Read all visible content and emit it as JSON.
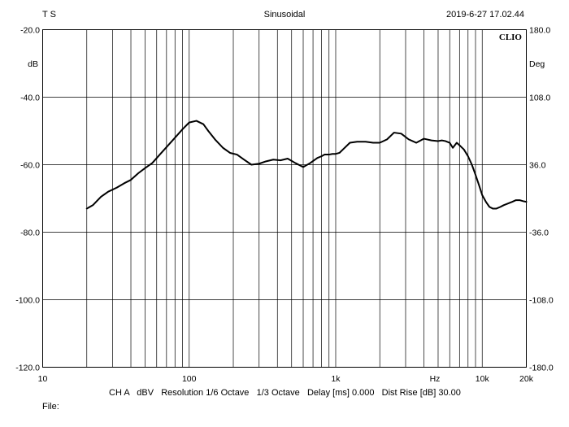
{
  "header": {
    "left": "T S",
    "center": "Sinusoidal",
    "right": "2019-6-27 17.02.44",
    "brand": "CLIO"
  },
  "footer": {
    "settings": "CH A   dBV   Resolution 1/6 Octave   1/3 Octave   Delay [ms] 0.000   Dist Rise [dB] 30.00",
    "file": "File:"
  },
  "chart_data": {
    "type": "line",
    "x_scale": "log",
    "grid": true,
    "xlim": [
      10,
      20000
    ],
    "ylim": [
      -120,
      -20
    ],
    "y2lim": [
      -180,
      180
    ],
    "ylabel": "dB",
    "y2label": "Deg",
    "xunit_label": "Hz",
    "x_ticks": [
      {
        "value": 10,
        "label": "10"
      },
      {
        "value": 100,
        "label": "100"
      },
      {
        "value": 1000,
        "label": "1k"
      },
      {
        "value": 10000,
        "label": "10k"
      },
      {
        "value": 20000,
        "label": "20k"
      }
    ],
    "y_ticks": [
      {
        "value": -20,
        "label": "-20.0"
      },
      {
        "value": -40,
        "label": "-40.0"
      },
      {
        "value": -60,
        "label": "-60.0"
      },
      {
        "value": -80,
        "label": "-80.0"
      },
      {
        "value": -100,
        "label": "-100.0"
      },
      {
        "value": -120,
        "label": "-120.0"
      }
    ],
    "y2_ticks": [
      {
        "value": 180,
        "label": "180.0"
      },
      {
        "value": 108,
        "label": "108.0"
      },
      {
        "value": 36,
        "label": "36.0"
      },
      {
        "value": -36,
        "label": "-36.0"
      },
      {
        "value": -108,
        "label": "-108.0"
      },
      {
        "value": -180,
        "label": "-180.0"
      }
    ],
    "series": [
      {
        "x": [
          20,
          22,
          25,
          28,
          32,
          36,
          40,
          45,
          50,
          56,
          63,
          71,
          80,
          90,
          100,
          112,
          125,
          135,
          150,
          170,
          190,
          212,
          237,
          266,
          300,
          335,
          375,
          420,
          470,
          530,
          600,
          670,
          750,
          800,
          840,
          900,
          950,
          1000,
          1060,
          1120,
          1250,
          1400,
          1600,
          1800,
          2000,
          2240,
          2500,
          2800,
          3150,
          3550,
          4000,
          4500,
          5000,
          5300,
          5600,
          6000,
          6300,
          6700,
          7100,
          7500,
          8000,
          8500,
          9000,
          9500,
          10000,
          10600,
          11200,
          11800,
          12500,
          13300,
          14000,
          15000,
          16000,
          17000,
          18000,
          19000,
          20000
        ],
        "values": [
          -73.0,
          -72.0,
          -69.5,
          -68.0,
          -66.8,
          -65.5,
          -64.5,
          -62.5,
          -61.0,
          -59.5,
          -57.0,
          -54.5,
          -52.0,
          -49.5,
          -47.5,
          -47.0,
          -48.0,
          -50.0,
          -52.5,
          -55.0,
          -56.5,
          -57.0,
          -58.5,
          -60.0,
          -59.7,
          -59.0,
          -58.5,
          -58.7,
          -58.2,
          -59.5,
          -60.7,
          -59.5,
          -58.0,
          -57.5,
          -57.0,
          -57.0,
          -56.8,
          -56.8,
          -56.5,
          -55.5,
          -53.5,
          -53.2,
          -53.2,
          -53.5,
          -53.5,
          -52.5,
          -50.5,
          -50.8,
          -52.5,
          -53.5,
          -52.3,
          -52.8,
          -53.0,
          -52.8,
          -53.0,
          -53.5,
          -55.0,
          -53.5,
          -54.5,
          -55.5,
          -57.5,
          -60.0,
          -63.0,
          -66.0,
          -69.0,
          -71.0,
          -72.5,
          -73.0,
          -73.0,
          -72.5,
          -72.0,
          -71.5,
          -71.0,
          -70.5,
          -70.5,
          -70.8,
          -71.0
        ]
      }
    ]
  }
}
